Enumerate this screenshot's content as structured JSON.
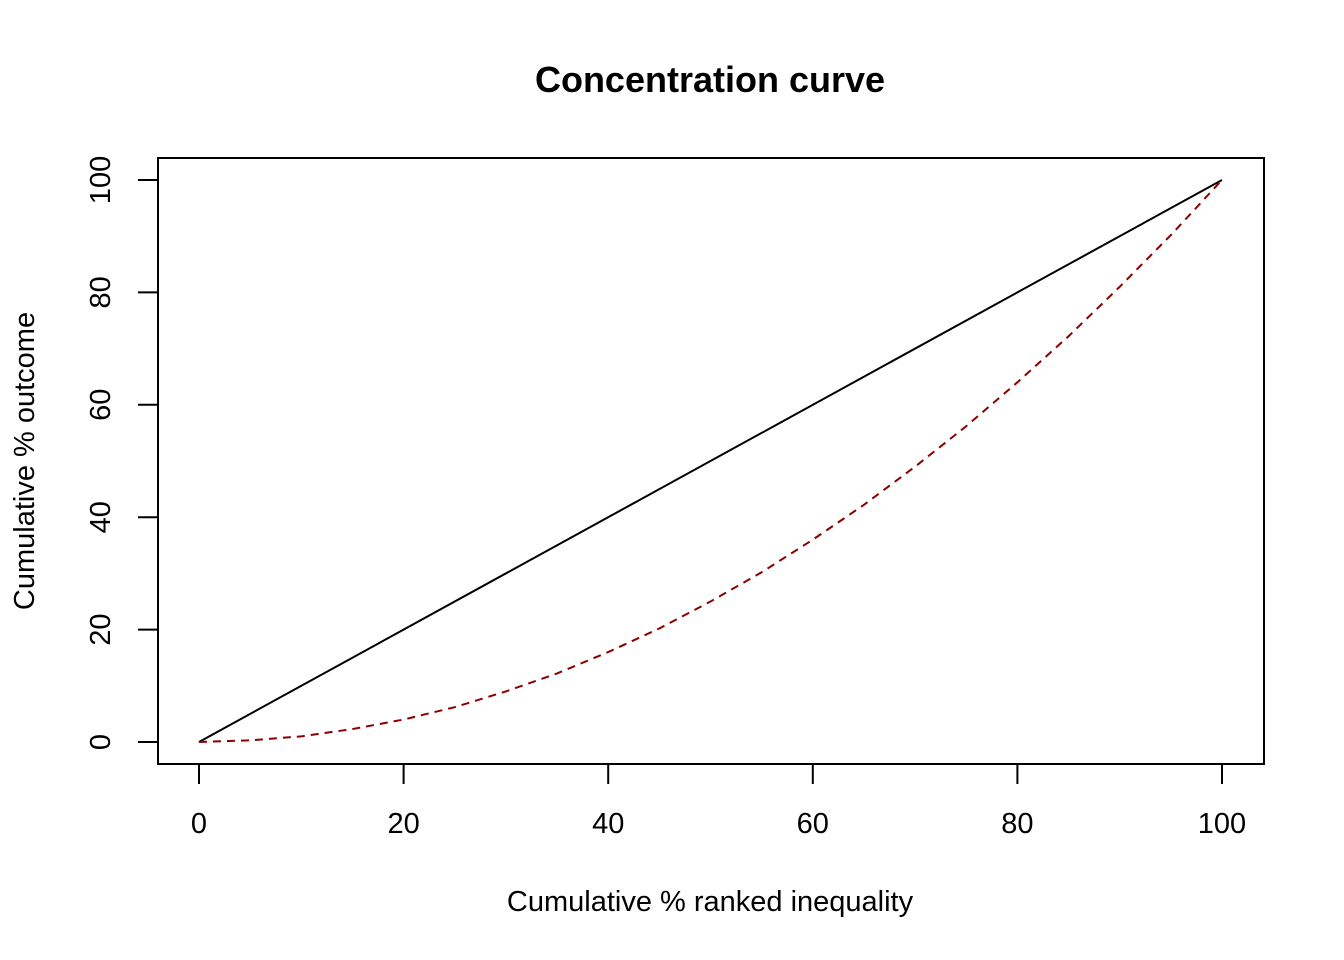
{
  "chart_data": {
    "type": "line",
    "title": "Concentration curve",
    "xlabel": "Cumulative % ranked inequality",
    "ylabel": "Cumulative % outcome",
    "xlim": [
      0,
      100
    ],
    "ylim": [
      0,
      100
    ],
    "xticks": [
      0,
      20,
      40,
      60,
      80,
      100
    ],
    "yticks": [
      0,
      20,
      40,
      60,
      80,
      100
    ],
    "grid": false,
    "series": [
      {
        "style": "solid",
        "color": "#000000",
        "x": [
          0,
          100
        ],
        "y": [
          0,
          100
        ]
      },
      {
        "style": "dashed",
        "color": "#8b0000",
        "x": [
          0,
          5,
          10,
          15,
          20,
          25,
          30,
          35,
          40,
          45,
          50,
          55,
          60,
          65,
          70,
          75,
          80,
          85,
          90,
          95,
          100
        ],
        "y": [
          0,
          0.3,
          1,
          2.3,
          4,
          6.2,
          9,
          12.2,
          16,
          20.2,
          25,
          30.2,
          36,
          42.2,
          49,
          56.2,
          64,
          72.2,
          81,
          90.2,
          100
        ]
      }
    ]
  }
}
